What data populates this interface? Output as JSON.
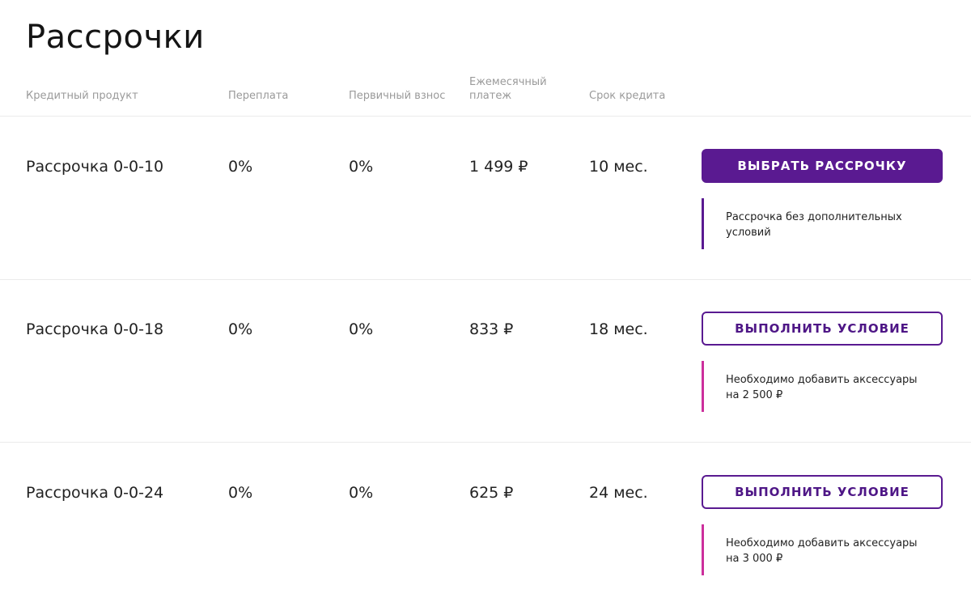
{
  "page": {
    "title": "Рассрочки"
  },
  "table": {
    "headers": {
      "product": "Кредитный продукт",
      "overpay": "Переплата",
      "initial": "Первичный взнос",
      "monthly_line1": "Ежемесячный",
      "monthly_line2": "платеж",
      "term": "Срок кредита"
    },
    "rows": [
      {
        "product": "Рассрочка 0-0-10",
        "overpay": "0%",
        "initial": "0%",
        "monthly": "1 499 ₽",
        "term": "10 мес.",
        "button_label": "ВЫБРАТЬ РАССРОЧКУ",
        "note": "Рассрочка без дополнительных условий"
      },
      {
        "product": "Рассрочка 0-0-18",
        "overpay": "0%",
        "initial": "0%",
        "monthly": "833 ₽",
        "term": "18 мес.",
        "button_label": "ВЫПОЛНИТЬ УСЛОВИЕ",
        "note": "Необходимо добавить аксессуары на 2 500 ₽"
      },
      {
        "product": "Рассрочка 0-0-24",
        "overpay": "0%",
        "initial": "0%",
        "monthly": "625 ₽",
        "term": "24 мес.",
        "button_label": "ВЫПОЛНИТЬ УСЛОВИЕ",
        "note": "Необходимо добавить аксессуары на 3 000 ₽"
      }
    ]
  },
  "colors": {
    "primary": "#5a1a91",
    "note_bar_primary": "#5a1a91",
    "note_bar_condition": "#cc2f9c",
    "divider": "#ebebeb",
    "header_text": "#9a9a9a"
  }
}
